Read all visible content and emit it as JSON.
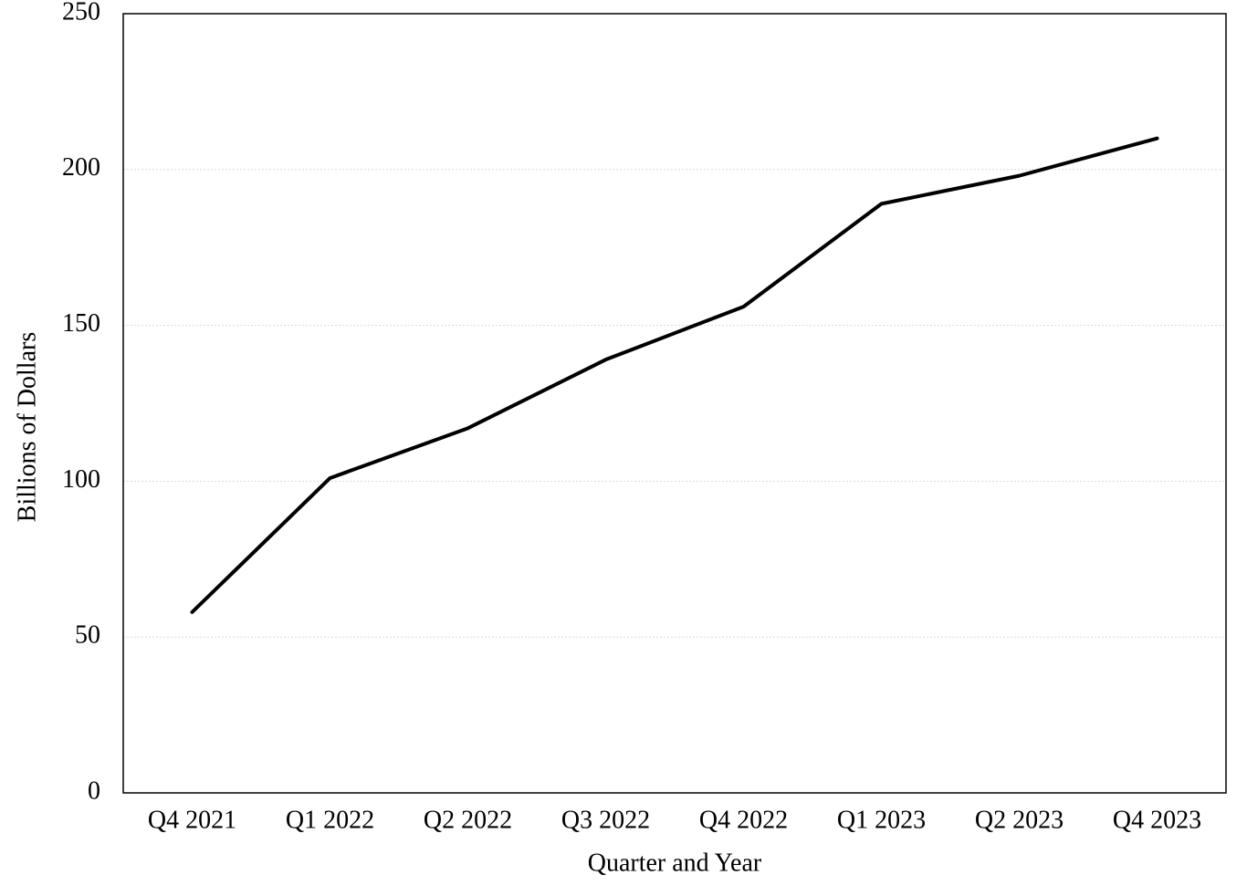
{
  "chart_data": {
    "type": "line",
    "x_label": "Quarter and Year",
    "y_label": "Billions of Dollars",
    "categories": [
      "Q4 2021",
      "Q1 2022",
      "Q2 2022",
      "Q3 2022",
      "Q4 2022",
      "Q1 2023",
      "Q2 2023",
      "Q4 2023"
    ],
    "values": [
      58,
      101,
      117,
      139,
      156,
      189,
      198,
      210
    ],
    "color": "#000000",
    "ylim": [
      0,
      250
    ],
    "yticks": [
      0,
      50,
      100,
      150,
      200,
      250
    ],
    "grid": true
  }
}
